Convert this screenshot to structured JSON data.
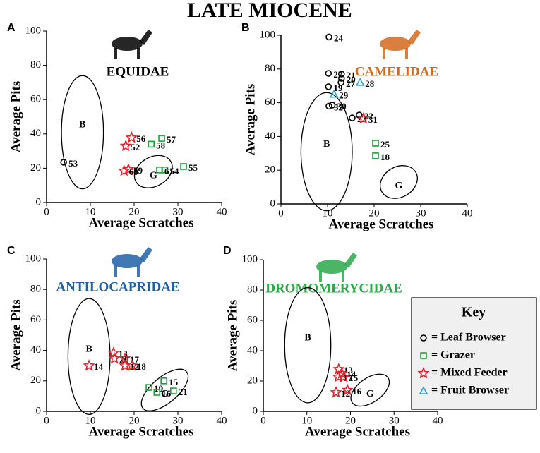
{
  "title": "LATE MIOCENE",
  "key": {
    "title": "Key",
    "items": [
      {
        "label": "= Leaf Browser",
        "marker": "circle",
        "color": "#000000"
      },
      {
        "label": "= Grazer",
        "marker": "square",
        "color": "#1aa33a"
      },
      {
        "label": "= Mixed Feeder",
        "marker": "star",
        "color": "#e8202a"
      },
      {
        "label": "= Fruit Browser",
        "marker": "triangle",
        "color": "#29a3d9"
      }
    ]
  },
  "chart_data": [
    {
      "type": "scatter",
      "panel": "A",
      "family": "EQUIDAE",
      "family_color": "#000000",
      "x_label": "Average Scratches",
      "y_label": "Average Pits",
      "xlim": [
        0,
        40
      ],
      "ylim": [
        0,
        100
      ],
      "xticks": [
        0,
        10,
        20,
        30,
        40
      ],
      "yticks": [
        0,
        20,
        40,
        60,
        80,
        100
      ],
      "regions": [
        {
          "label": "B",
          "cx": 8.2,
          "cy": 41,
          "rx": 4.8,
          "ry": 33,
          "angle": 0
        },
        {
          "label": "G",
          "cx": 24.4,
          "cy": 18,
          "rx": 4.6,
          "ry": 8.5,
          "angle": -30
        }
      ],
      "series": [
        {
          "marker": "circle",
          "color": "#000000",
          "x": [
            3.9
          ],
          "y": [
            23.5
          ],
          "labels": [
            "53"
          ]
        },
        {
          "marker": "star",
          "color": "#e8202a",
          "x": [
            19.4,
            18.1,
            18.7,
            17.7
          ],
          "y": [
            37.8,
            33,
            19.3,
            18.5
          ],
          "labels": [
            "56",
            "52",
            "59",
            "60"
          ]
        },
        {
          "marker": "square",
          "color": "#1aa33a",
          "x": [
            26.3,
            23.9,
            27,
            25.8,
            31.3
          ],
          "y": [
            37.4,
            34,
            19,
            19,
            21
          ],
          "labels": [
            "57",
            "58",
            "54",
            "61",
            "55"
          ]
        }
      ]
    },
    {
      "type": "scatter",
      "panel": "B",
      "family": "CAMELIDAE",
      "family_color": "#d2691e",
      "x_label": "Average Scratches",
      "y_label": "Average Pits",
      "xlim": [
        0,
        40
      ],
      "ylim": [
        0,
        100
      ],
      "xticks": [
        0,
        10,
        20,
        30,
        40
      ],
      "yticks": [
        0,
        20,
        40,
        60,
        80,
        100
      ],
      "regions": [
        {
          "label": "B",
          "cx": 9.8,
          "cy": 31,
          "rx": 5.5,
          "ry": 35,
          "angle": 0
        },
        {
          "label": "G",
          "cx": 25.3,
          "cy": 13,
          "rx": 4.2,
          "ry": 9,
          "angle": -30
        }
      ],
      "series": [
        {
          "marker": "circle",
          "color": "#000000",
          "x": [
            10.3,
            10.2,
            13,
            13,
            12.9,
            10.2,
            10.3,
            11,
            16.8,
            15.3
          ],
          "y": [
            99,
            77.4,
            77,
            74.5,
            72,
            69.5,
            58,
            58.6,
            52.7,
            51
          ],
          "labels": [
            "24",
            "27",
            "21",
            "20",
            "27",
            "19",
            "32",
            "30",
            "22",
            "23"
          ]
        },
        {
          "marker": "triangle",
          "color": "#29a3d9",
          "x": [
            11.4,
            17
          ],
          "y": [
            65,
            72
          ],
          "labels": [
            "29",
            "28"
          ]
        },
        {
          "marker": "star",
          "color": "#e8202a",
          "x": [
            17.7
          ],
          "y": [
            50.6
          ],
          "labels": [
            "31"
          ]
        },
        {
          "marker": "square",
          "color": "#1aa33a",
          "x": [
            20.3,
            20.3
          ],
          "y": [
            36,
            28.5
          ],
          "labels": [
            "25",
            "18"
          ]
        }
      ]
    },
    {
      "type": "scatter",
      "panel": "C",
      "family": "ANTILOCAPRIDAE",
      "family_color": "#1f5fa8",
      "x_label": "Average Scratches",
      "y_label": "Average Pits",
      "xlim": [
        0,
        40
      ],
      "ylim": [
        0,
        100
      ],
      "xticks": [
        0,
        10,
        20,
        30,
        40
      ],
      "yticks": [
        0,
        20,
        40,
        60,
        80,
        100
      ],
      "regions": [
        {
          "label": "B",
          "cx": 9.7,
          "cy": 36,
          "rx": 4.8,
          "ry": 38,
          "angle": 0
        },
        {
          "label": "G",
          "cx": 27,
          "cy": 14,
          "rx": 6.5,
          "ry": 8.5,
          "angle": -40
        }
      ],
      "series": [
        {
          "marker": "star",
          "color": "#e8202a",
          "x": [
            9.7,
            15.3,
            15.5,
            17.9,
            17.9,
            19.5
          ],
          "y": [
            30,
            38.4,
            34.7,
            34.7,
            30,
            30
          ],
          "labels": [
            "14",
            "13",
            "20",
            "17",
            "12",
            "18"
          ]
        },
        {
          "marker": "square",
          "color": "#1aa33a",
          "x": [
            23.4,
            26.8,
            25.2,
            29
          ],
          "y": [
            15.7,
            20,
            12.5,
            13.4
          ],
          "labels": [
            "19",
            "15",
            "16",
            "21"
          ]
        }
      ]
    },
    {
      "type": "scatter",
      "panel": "D",
      "family": "DROMOMERYCIDAE",
      "family_color": "#2aa84a",
      "x_label": "Average Scratches",
      "y_label": "Average Pits",
      "xlim": [
        0,
        40
      ],
      "ylim": [
        0,
        100
      ],
      "xticks": [
        0,
        10,
        20,
        30,
        40
      ],
      "yticks": [
        0,
        20,
        40,
        60,
        80,
        100
      ],
      "regions": [
        {
          "label": "B",
          "cx": 10.2,
          "cy": 43.6,
          "rx": 5.3,
          "ry": 38,
          "angle": 0
        },
        {
          "label": "G",
          "cx": 24.5,
          "cy": 14,
          "rx": 5,
          "ry": 8,
          "angle": -35
        }
      ],
      "series": [
        {
          "marker": "star",
          "color": "#e8202a",
          "x": [
            17.3,
            18,
            17.2,
            18.5,
            16.7,
            19.3
          ],
          "y": [
            27.8,
            25,
            22.7,
            22.7,
            12.5,
            14
          ],
          "labels": [
            "13",
            "14",
            "17",
            "15",
            "12",
            "16"
          ]
        }
      ]
    }
  ]
}
